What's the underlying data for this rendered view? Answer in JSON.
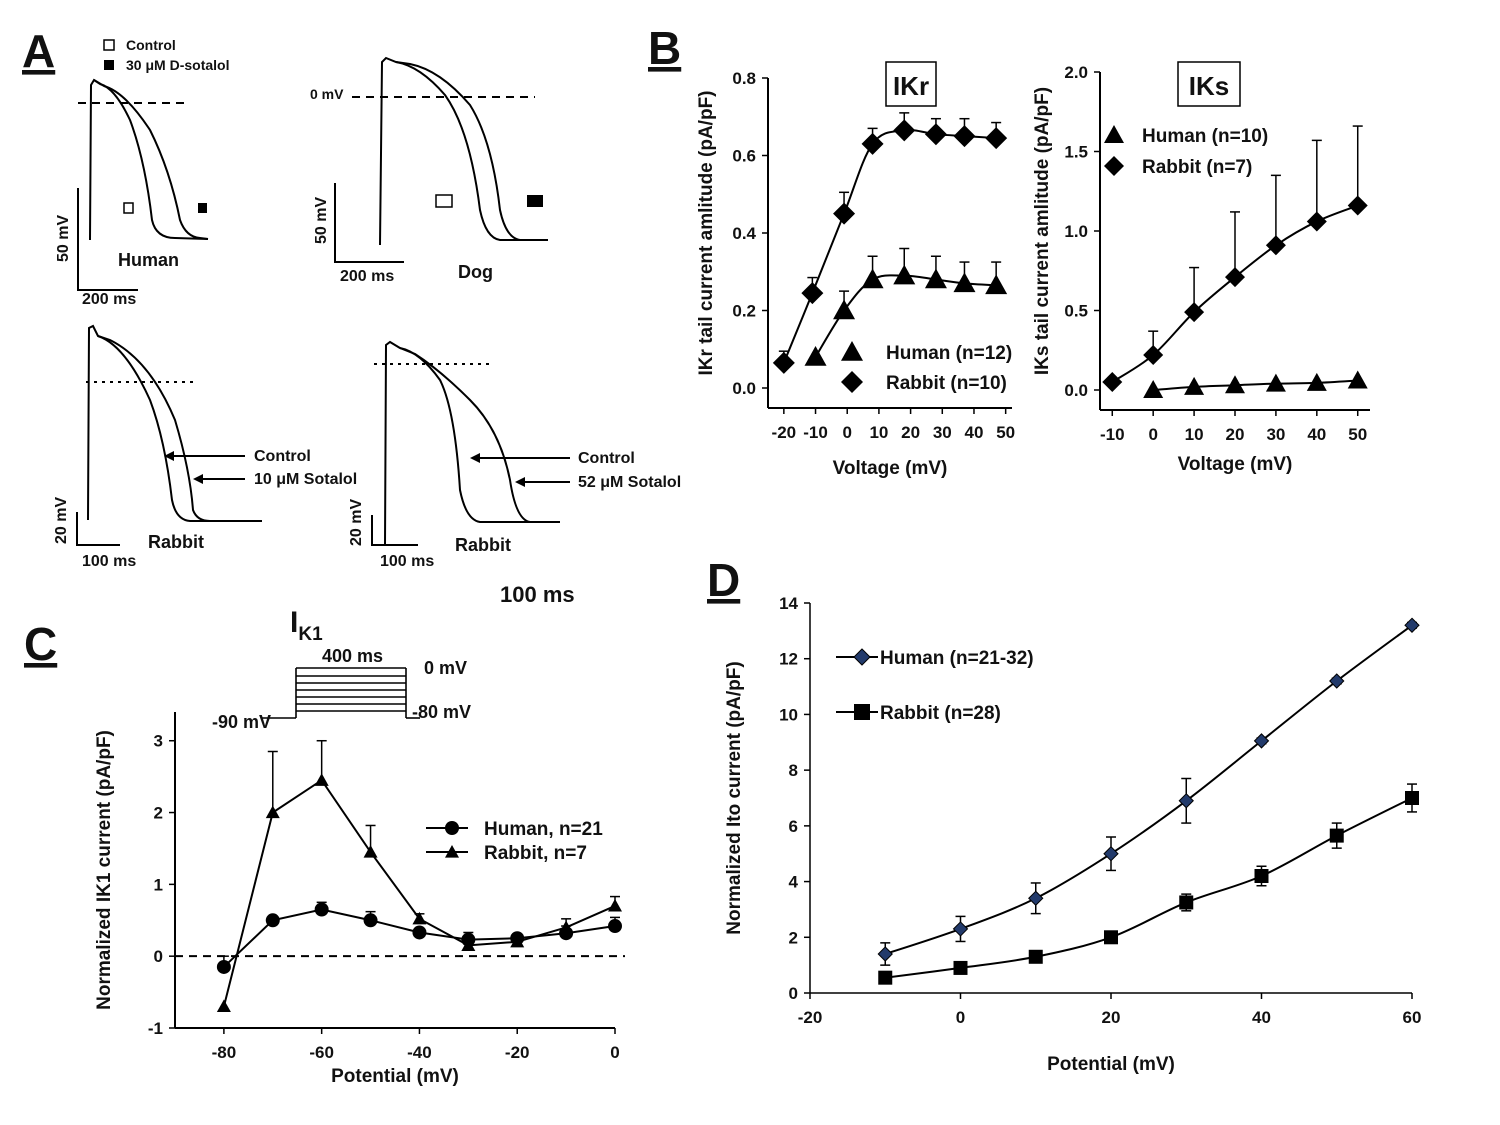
{
  "panels": {
    "A": {
      "letter": "A",
      "legend": {
        "control": "Control",
        "drug": "30 μM D-sotalol"
      },
      "human": {
        "name": "Human",
        "vscale": "50 mV",
        "tscale": "200 ms"
      },
      "dog": {
        "name": "Dog",
        "zero": "0 mV",
        "vscale": "50 mV",
        "tscale": "200 ms"
      },
      "rabbit1": {
        "name": "Rabbit",
        "control": "Control",
        "drug": "10 μM Sotalol",
        "vscale": "20 mV",
        "tscale": "100 ms"
      },
      "rabbit2": {
        "name": "Rabbit",
        "control": "Control",
        "drug": "52 μM Sotalol",
        "vscale": "20 mV",
        "tscale": "100 ms"
      }
    },
    "B": {
      "letter": "B"
    },
    "C": {
      "letter": "C",
      "stray": "100 ms",
      "protocol": {
        "title_main": "I",
        "title_sub": "K1",
        "duration": "400 ms",
        "top": "0 mV",
        "hold": "-90 mV",
        "bottom": "-80 mV"
      }
    },
    "D": {
      "letter": "D"
    }
  },
  "chart_data": [
    {
      "id": "B-IKr",
      "type": "line",
      "title": "IKr",
      "xlabel": "Voltage (mV)",
      "ylabel": "IKr tail current amlitude (pA/pF)",
      "xlim": [
        -25,
        52
      ],
      "ylim": [
        0,
        0.8
      ],
      "xticks": [
        -20,
        -10,
        0,
        10,
        20,
        30,
        40,
        50
      ],
      "yticks": [
        "0.0",
        "0.2",
        "0.4",
        "0.6",
        "0.8"
      ],
      "series": [
        {
          "name": "Human (n=12)",
          "marker": "triangle",
          "x": [
            -10,
            -1,
            8,
            18,
            28,
            37,
            47
          ],
          "y": [
            0.08,
            0.2,
            0.28,
            0.29,
            0.28,
            0.27,
            0.265
          ],
          "err": [
            0,
            0.05,
            0.06,
            0.07,
            0.06,
            0.055,
            0.06
          ]
        },
        {
          "name": "Rabbit (n=10)",
          "marker": "diamond",
          "x": [
            -20,
            -11,
            -1,
            8,
            18,
            28,
            37,
            47
          ],
          "y": [
            0.065,
            0.245,
            0.45,
            0.63,
            0.665,
            0.655,
            0.65,
            0.645
          ],
          "err": [
            0.03,
            0.04,
            0.055,
            0.04,
            0.045,
            0.04,
            0.045,
            0.04
          ]
        }
      ]
    },
    {
      "id": "B-IKs",
      "type": "line",
      "title": "IKs",
      "xlabel": "Voltage (mV)",
      "ylabel": "IKs tail current amlitude (pA/pF)",
      "xlim": [
        -13,
        53
      ],
      "ylim": [
        0,
        2.0
      ],
      "xticks": [
        -10,
        0,
        10,
        20,
        30,
        40,
        50
      ],
      "yticks": [
        "0.0",
        "0.5",
        "1.0",
        "1.5",
        "2.0"
      ],
      "series": [
        {
          "name": "Human (n=10)",
          "marker": "triangle",
          "x": [
            0,
            10,
            20,
            30,
            40,
            50
          ],
          "y": [
            0.0,
            0.02,
            0.03,
            0.04,
            0.045,
            0.06
          ],
          "err": [
            0,
            0,
            0,
            0,
            0,
            0
          ]
        },
        {
          "name": "Rabbit (n=7)",
          "marker": "diamond",
          "x": [
            -10,
            0,
            10,
            20,
            30,
            40,
            50
          ],
          "y": [
            0.05,
            0.22,
            0.49,
            0.71,
            0.91,
            1.06,
            1.16
          ],
          "err": [
            0,
            0.15,
            0.28,
            0.41,
            0.44,
            0.51,
            0.5
          ]
        }
      ]
    },
    {
      "id": "C-IK1",
      "type": "line",
      "xlabel": "Potential (mV)",
      "ylabel": "Normalized IK1 current (pA/pF)",
      "xlim": [
        -90,
        0
      ],
      "ylim": [
        -1,
        3.4
      ],
      "xticks": [
        -80,
        -60,
        -40,
        -20,
        0
      ],
      "yticks": [
        -1,
        0,
        1,
        2,
        3
      ],
      "series": [
        {
          "name": "Human, n=21",
          "marker": "circle",
          "x": [
            -80,
            -70,
            -60,
            -50,
            -40,
            -30,
            -20,
            -10,
            0
          ],
          "y": [
            -0.15,
            0.5,
            0.65,
            0.5,
            0.33,
            0.23,
            0.25,
            0.32,
            0.42
          ],
          "err": [
            0.15,
            0,
            0.1,
            0.12,
            0,
            0.1,
            0.05,
            0.1,
            0.12
          ]
        },
        {
          "name": "Rabbit, n=7",
          "marker": "triangle",
          "x": [
            -80,
            -70,
            -60,
            -50,
            -40,
            -30,
            -20,
            -10,
            0
          ],
          "y": [
            -0.7,
            2.0,
            2.45,
            1.45,
            0.52,
            0.15,
            0.2,
            0.4,
            0.7
          ],
          "err": [
            0,
            0.85,
            0.55,
            0.37,
            0.07,
            0.08,
            0.05,
            0.12,
            0.13
          ]
        }
      ]
    },
    {
      "id": "D-Ito",
      "type": "line",
      "xlabel": "Potential (mV)",
      "ylabel": "Normalized Ito current (pA/pF)",
      "xlim": [
        -20,
        60
      ],
      "ylim": [
        0,
        14
      ],
      "xticks": [
        -20,
        0,
        20,
        40,
        60
      ],
      "yticks": [
        0,
        2,
        4,
        6,
        8,
        10,
        12,
        14
      ],
      "series": [
        {
          "name": "Human (n=21-32)",
          "marker": "small-diamond",
          "x": [
            -10,
            0,
            10,
            20,
            30,
            40,
            50,
            60
          ],
          "y": [
            1.4,
            2.3,
            3.4,
            5.0,
            6.9,
            9.05,
            11.2,
            13.2
          ],
          "err": [
            0.4,
            0.45,
            0.55,
            0.6,
            0.8,
            0.1,
            0.1,
            0.1
          ]
        },
        {
          "name": "Rabbit (n=28)",
          "marker": "square",
          "x": [
            -10,
            0,
            10,
            20,
            30,
            40,
            50,
            60
          ],
          "y": [
            0.55,
            0.9,
            1.3,
            2.0,
            3.25,
            4.2,
            5.65,
            7.0
          ],
          "err": [
            0.1,
            0.1,
            0.1,
            0.1,
            0.3,
            0.35,
            0.45,
            0.5
          ]
        }
      ]
    }
  ]
}
